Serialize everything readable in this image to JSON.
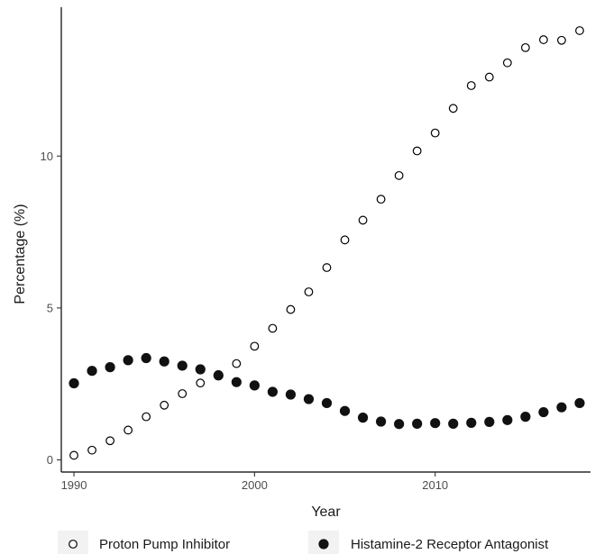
{
  "chart_data": {
    "type": "scatter",
    "title": "",
    "xlabel": "Year",
    "ylabel": "Percentage (%)",
    "xlim": [
      1989.3,
      2018.6
    ],
    "ylim": [
      -0.4,
      14.9
    ],
    "x_ticks": [
      1990,
      2000,
      2010
    ],
    "y_ticks": [
      0,
      5,
      10
    ],
    "grid": false,
    "legend_position": "bottom",
    "x": [
      1990,
      1991,
      1992,
      1993,
      1994,
      1995,
      1996,
      1997,
      1998,
      1999,
      2000,
      2001,
      2002,
      2003,
      2004,
      2005,
      2006,
      2007,
      2008,
      2009,
      2010,
      2011,
      2012,
      2013,
      2014,
      2015,
      2016,
      2017,
      2018
    ],
    "series": [
      {
        "name": "Proton Pump Inhibitor",
        "marker": "open-circle",
        "color": "#000000",
        "values": [
          0.15,
          0.32,
          0.63,
          0.98,
          1.42,
          1.8,
          2.18,
          2.53,
          2.81,
          3.17,
          3.74,
          4.33,
          4.95,
          5.53,
          6.33,
          7.24,
          7.89,
          8.58,
          9.36,
          10.17,
          10.76,
          11.57,
          12.32,
          12.6,
          13.07,
          13.57,
          13.83,
          13.81,
          14.13
        ]
      },
      {
        "name": "Histamine-2 Receptor Antagonist",
        "marker": "filled-circle",
        "color": "#111111",
        "values": [
          2.52,
          2.93,
          3.05,
          3.28,
          3.35,
          3.24,
          3.1,
          2.98,
          2.78,
          2.56,
          2.45,
          2.24,
          2.15,
          2.0,
          1.87,
          1.61,
          1.39,
          1.26,
          1.18,
          1.19,
          1.21,
          1.19,
          1.22,
          1.25,
          1.31,
          1.42,
          1.57,
          1.73,
          1.87
        ]
      }
    ]
  }
}
